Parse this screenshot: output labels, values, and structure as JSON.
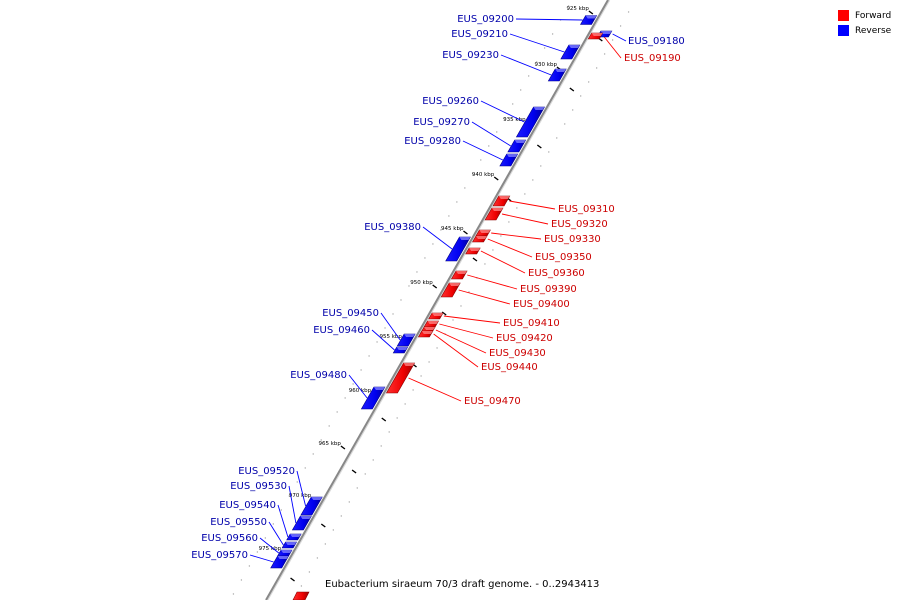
{
  "legend": {
    "forward_label": "Forward",
    "reverse_label": "Reverse",
    "forward_color": "#ff0000",
    "reverse_color": "#0000ff"
  },
  "caption": "Eubacterium siraeum 70/3 draft genome. - 0..2943413",
  "colors": {
    "forward": "#ff0000",
    "reverse": "#0000ff",
    "forward_text": "#cc0000",
    "reverse_text": "#0000aa",
    "axis": "#999999"
  },
  "kbp_ticks": [
    "925 kbp",
    "930 kbp",
    "935 kbp",
    "940 kbp",
    "945 kbp",
    "950 kbp",
    "955 kbp",
    "960 kbp",
    "965 kbp",
    "970 kbp",
    "975 kbp"
  ],
  "genes_reverse": [
    {
      "label": "EUS_09180",
      "strand": "reverse"
    },
    {
      "label": "EUS_09200",
      "strand": "reverse"
    },
    {
      "label": "EUS_09210",
      "strand": "reverse"
    },
    {
      "label": "EUS_09230",
      "strand": "reverse"
    },
    {
      "label": "EUS_09260",
      "strand": "reverse"
    },
    {
      "label": "EUS_09270",
      "strand": "reverse"
    },
    {
      "label": "EUS_09280",
      "strand": "reverse"
    },
    {
      "label": "EUS_09380",
      "strand": "reverse"
    },
    {
      "label": "EUS_09450",
      "strand": "reverse"
    },
    {
      "label": "EUS_09460",
      "strand": "reverse"
    },
    {
      "label": "EUS_09480",
      "strand": "reverse"
    },
    {
      "label": "EUS_09520",
      "strand": "reverse"
    },
    {
      "label": "EUS_09530",
      "strand": "reverse"
    },
    {
      "label": "EUS_09540",
      "strand": "reverse"
    },
    {
      "label": "EUS_09550",
      "strand": "reverse"
    },
    {
      "label": "EUS_09560",
      "strand": "reverse"
    },
    {
      "label": "EUS_09570",
      "strand": "reverse"
    }
  ],
  "genes_forward": [
    {
      "label": "EUS_09190",
      "strand": "forward"
    },
    {
      "label": "EUS_09310",
      "strand": "forward"
    },
    {
      "label": "EUS_09320",
      "strand": "forward"
    },
    {
      "label": "EUS_09330",
      "strand": "forward"
    },
    {
      "label": "EUS_09350",
      "strand": "forward"
    },
    {
      "label": "EUS_09360",
      "strand": "forward"
    },
    {
      "label": "EUS_09390",
      "strand": "forward"
    },
    {
      "label": "EUS_09400",
      "strand": "forward"
    },
    {
      "label": "EUS_09410",
      "strand": "forward"
    },
    {
      "label": "EUS_09420",
      "strand": "forward"
    },
    {
      "label": "EUS_09430",
      "strand": "forward"
    },
    {
      "label": "EUS_09440",
      "strand": "forward"
    },
    {
      "label": "EUS_09470",
      "strand": "forward"
    }
  ]
}
